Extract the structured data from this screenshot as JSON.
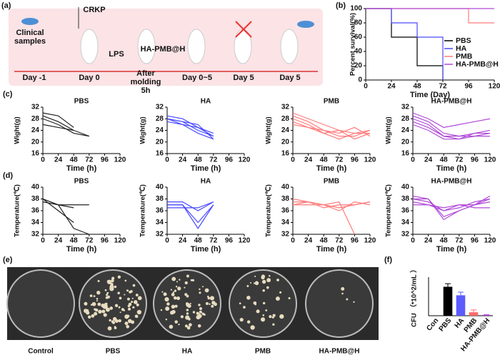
{
  "panel_labels": [
    "(a)",
    "(b)",
    "(c)",
    "(d)",
    "(e)",
    "(f)"
  ],
  "schematic": {
    "texts": {
      "clinical": "Clinical samples",
      "crkp": "CRKP",
      "lps": "LPS",
      "drug": "HA-PMB@H"
    },
    "days": [
      "Day -1",
      "Day 0",
      "After molding 5h",
      "Day 0~5",
      "Day 5",
      "Day 5"
    ]
  },
  "photo": {
    "labels": [
      "Control",
      "PBS",
      "HA",
      "PMB",
      "HA-PMB@H"
    ]
  },
  "chart_data": [
    {
      "type": "step",
      "xlabel": "Time (Day)",
      "ylabel": "Percent survival(%)",
      "x": [
        0,
        24,
        48,
        72,
        96,
        120
      ],
      "xlim": [
        0,
        120
      ],
      "xticks": [
        0,
        24,
        48,
        72,
        96,
        120
      ],
      "ylim": [
        0,
        100
      ],
      "yticks": [
        0,
        20,
        40,
        60,
        80,
        100
      ],
      "legend": "right",
      "series": [
        {
          "name": "PBS",
          "color": "#000000",
          "values": [
            100,
            60,
            20,
            0,
            null,
            null
          ]
        },
        {
          "name": "HA",
          "color": "#4a4aff",
          "values": [
            100,
            80,
            60,
            0,
            null,
            null
          ]
        },
        {
          "name": "PMB",
          "color": "#ff7b7b",
          "values": [
            100,
            100,
            100,
            100,
            80,
            80
          ]
        },
        {
          "name": "HA-PMB@H",
          "color": "#b04ad8",
          "values": [
            100,
            100,
            100,
            100,
            100,
            100
          ]
        }
      ]
    },
    {
      "type": "line",
      "title": "PBS",
      "xlabel": "Time (h)",
      "ylabel": "Wight(g)",
      "x": [
        0,
        24,
        48,
        72,
        96,
        120
      ],
      "xlim": [
        0,
        120
      ],
      "xticks": [
        0,
        24,
        48,
        72,
        96,
        120
      ],
      "ylim": [
        16,
        32
      ],
      "yticks": [
        16,
        20,
        24,
        28,
        32
      ],
      "series": [
        {
          "color": "#222222",
          "values": [
            30,
            29,
            25,
            null,
            null,
            null
          ]
        },
        {
          "color": "#222222",
          "values": [
            29,
            27,
            24,
            22,
            null,
            null
          ]
        },
        {
          "color": "#222222",
          "values": [
            28,
            26,
            23,
            22,
            null,
            null
          ]
        },
        {
          "color": "#222222",
          "values": [
            26,
            25,
            24,
            null,
            null,
            null
          ]
        }
      ]
    },
    {
      "type": "line",
      "title": "HA",
      "xlabel": "Time (h)",
      "ylabel": "Wight(g)",
      "x": [
        0,
        24,
        48,
        72,
        96,
        120
      ],
      "xlim": [
        0,
        120
      ],
      "xticks": [
        0,
        24,
        48,
        72,
        96,
        120
      ],
      "ylim": [
        16,
        32
      ],
      "yticks": [
        16,
        20,
        24,
        28,
        32
      ],
      "series": [
        {
          "color": "#4a4aff",
          "values": [
            29,
            28,
            25,
            23,
            null,
            null
          ]
        },
        {
          "color": "#4a4aff",
          "values": [
            28,
            27,
            24,
            22,
            null,
            null
          ]
        },
        {
          "color": "#4a4aff",
          "values": [
            28,
            26,
            23,
            21,
            null,
            null
          ]
        },
        {
          "color": "#4a4aff",
          "values": [
            28,
            27,
            26,
            21,
            null,
            null
          ]
        },
        {
          "color": "#4a4aff",
          "values": [
            27,
            26,
            25,
            22,
            null,
            null
          ]
        }
      ]
    },
    {
      "type": "line",
      "title": "PMB",
      "xlabel": "Time (h)",
      "ylabel": "Wight(g)",
      "x": [
        0,
        24,
        48,
        72,
        96,
        120
      ],
      "xlim": [
        0,
        120
      ],
      "xticks": [
        0,
        24,
        48,
        72,
        96,
        120
      ],
      "ylim": [
        16,
        32
      ],
      "yticks": [
        16,
        20,
        24,
        28,
        32
      ],
      "series": [
        {
          "color": "#ff7b7b",
          "values": [
            30,
            28,
            26,
            24,
            21,
            23
          ]
        },
        {
          "color": "#ff7b7b",
          "values": [
            29,
            27,
            24,
            23,
            25,
            22
          ]
        },
        {
          "color": "#ff7b7b",
          "values": [
            28,
            26,
            23,
            24,
            23,
            24
          ]
        },
        {
          "color": "#ff7b7b",
          "values": [
            27,
            25,
            24,
            22,
            22,
            24
          ]
        },
        {
          "color": "#ff7b7b",
          "values": [
            26,
            25,
            23,
            21,
            23,
            23
          ]
        }
      ]
    },
    {
      "type": "line",
      "title": "HA-PMB@H",
      "xlabel": "Time (h)",
      "ylabel": "Wight(g)",
      "x": [
        0,
        24,
        48,
        72,
        96,
        120
      ],
      "xlim": [
        0,
        120
      ],
      "xticks": [
        0,
        24,
        48,
        72,
        96,
        120
      ],
      "ylim": [
        16,
        32
      ],
      "yticks": [
        16,
        20,
        24,
        28,
        32
      ],
      "series": [
        {
          "color": "#b04ad8",
          "values": [
            30,
            28,
            25,
            26,
            27,
            28
          ]
        },
        {
          "color": "#b04ad8",
          "values": [
            29,
            27,
            23,
            22,
            23,
            24
          ]
        },
        {
          "color": "#b04ad8",
          "values": [
            28,
            26,
            22,
            22,
            22,
            22
          ]
        },
        {
          "color": "#b04ad8",
          "values": [
            27,
            25,
            22,
            21,
            23,
            23
          ]
        },
        {
          "color": "#b04ad8",
          "values": [
            26,
            24,
            21,
            21,
            22,
            23
          ]
        }
      ]
    },
    {
      "type": "line",
      "title": "PBS",
      "xlabel": "Time (h)",
      "ylabel": "Temperature(℃)",
      "x": [
        0,
        24,
        48,
        72,
        96,
        120
      ],
      "xlim": [
        0,
        120
      ],
      "xticks": [
        0,
        24,
        48,
        72,
        96,
        120
      ],
      "ylim": [
        32,
        40
      ],
      "yticks": [
        32,
        34,
        36,
        38,
        40
      ],
      "series": [
        {
          "color": "#222222",
          "values": [
            38,
            37,
            36.5,
            null,
            null,
            null
          ]
        },
        {
          "color": "#222222",
          "values": [
            38,
            37,
            37,
            37,
            null,
            null
          ]
        },
        {
          "color": "#222222",
          "values": [
            37.5,
            37,
            33,
            32,
            null,
            null
          ]
        },
        {
          "color": "#222222",
          "values": [
            38,
            36,
            34,
            null,
            null,
            null
          ]
        }
      ]
    },
    {
      "type": "line",
      "title": "HA",
      "xlabel": "Time (h)",
      "ylabel": "Temperature(℃)",
      "x": [
        0,
        24,
        48,
        72,
        96,
        120
      ],
      "xlim": [
        0,
        120
      ],
      "xticks": [
        0,
        24,
        48,
        72,
        96,
        120
      ],
      "ylim": [
        32,
        40
      ],
      "yticks": [
        32,
        34,
        36,
        38,
        40
      ],
      "series": [
        {
          "color": "#4a4aff",
          "values": [
            37.5,
            37.5,
            36,
            37.5,
            null,
            null
          ]
        },
        {
          "color": "#4a4aff",
          "values": [
            37,
            37,
            34,
            37,
            null,
            null
          ]
        },
        {
          "color": "#4a4aff",
          "values": [
            37,
            37,
            33,
            37,
            null,
            null
          ]
        },
        {
          "color": "#4a4aff",
          "values": [
            36.5,
            36.5,
            36.5,
            37.5,
            null,
            null
          ]
        }
      ]
    },
    {
      "type": "line",
      "title": "PMB",
      "xlabel": "Time (h)",
      "ylabel": "Temperature(℃)",
      "x": [
        0,
        24,
        48,
        72,
        96,
        120
      ],
      "xlim": [
        0,
        120
      ],
      "xticks": [
        0,
        24,
        48,
        72,
        96,
        120
      ],
      "ylim": [
        32,
        40
      ],
      "yticks": [
        32,
        34,
        36,
        38,
        40
      ],
      "series": [
        {
          "color": "#ff7b7b",
          "values": [
            37.5,
            37.5,
            37,
            36.5,
            37,
            37.5
          ]
        },
        {
          "color": "#ff7b7b",
          "values": [
            37,
            37.5,
            36.5,
            37,
            37,
            37.5
          ]
        },
        {
          "color": "#ff7b7b",
          "values": [
            38,
            37.5,
            37,
            36,
            37.5,
            37
          ]
        },
        {
          "color": "#ff7b7b",
          "values": [
            37,
            37,
            37,
            37.5,
            32,
            null
          ]
        }
      ]
    },
    {
      "type": "line",
      "title": "HA-PMB@H",
      "xlabel": "Time (h)",
      "ylabel": "Temperature(℃)",
      "x": [
        0,
        24,
        48,
        72,
        96,
        120
      ],
      "xlim": [
        0,
        120
      ],
      "xticks": [
        0,
        24,
        48,
        72,
        96,
        120
      ],
      "ylim": [
        32,
        40
      ],
      "yticks": [
        32,
        34,
        36,
        38,
        40
      ],
      "series": [
        {
          "color": "#b04ad8",
          "values": [
            38,
            38,
            35,
            36,
            37,
            38.5
          ]
        },
        {
          "color": "#b04ad8",
          "values": [
            38,
            37.5,
            36,
            36.5,
            37.5,
            38
          ]
        },
        {
          "color": "#b04ad8",
          "values": [
            37.5,
            37,
            36.5,
            37,
            37,
            38
          ]
        },
        {
          "color": "#b04ad8",
          "values": [
            37,
            37,
            36,
            37,
            36.5,
            36.5
          ]
        },
        {
          "color": "#b04ad8",
          "values": [
            38.5,
            38,
            34.5,
            36,
            37,
            37.5
          ]
        }
      ]
    },
    {
      "type": "bar",
      "ylabel": "CFU （*10^2/mL ）",
      "categories": [
        "Con",
        "PBS",
        "HA",
        "PMB",
        "HA-PMB@H"
      ],
      "values": [
        0,
        3.75,
        2.65,
        0.45,
        0.1
      ],
      "errors": [
        0,
        0.4,
        0.4,
        0.3,
        0.05
      ],
      "colors": [
        "#000000",
        "#000000",
        "#5b5bff",
        "#ff6b6b",
        "#b04ad8"
      ],
      "ylim": [
        0,
        5
      ]
    }
  ]
}
